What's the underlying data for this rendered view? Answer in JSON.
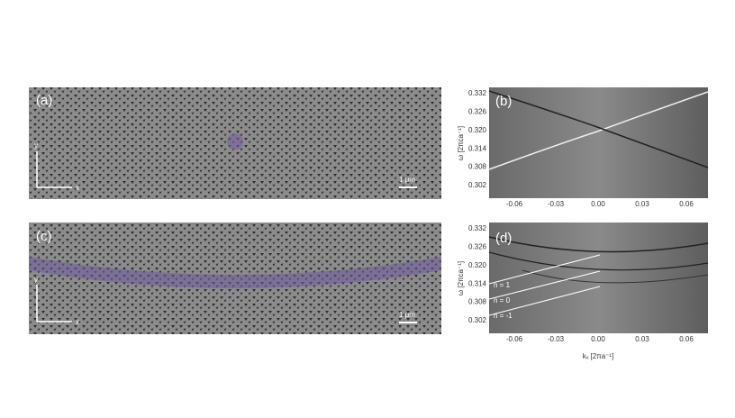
{
  "panels": [
    {
      "label": "(a)",
      "axis_y": "y",
      "axis_x": "x",
      "scale_bar": "1 μm"
    },
    {
      "label": "(b)",
      "y_axis_label": "ω [2πca⁻¹]",
      "yticks": [
        "0.332",
        "0.326",
        "0.320",
        "0.314",
        "0.308",
        "0.302"
      ],
      "xticks": [
        "-0.06",
        "-0.03",
        "0.00",
        "0.03",
        "0.06"
      ]
    },
    {
      "label": "(c)",
      "axis_y": "y",
      "axis_x": "x",
      "scale_bar": "1 μm"
    },
    {
      "label": "(d)",
      "y_axis_label": "ω [2πca⁻¹]",
      "yticks": [
        "0.332",
        "0.326",
        "0.320",
        "0.314",
        "0.308",
        "0.302"
      ],
      "xticks": [
        "-0.06",
        "-0.03",
        "0.00",
        "0.03",
        "0.06"
      ],
      "x_axis_label": "kₓ [2πa⁻¹]",
      "mode_labels": [
        "n = 1",
        "n = 0",
        "n = -1"
      ]
    }
  ]
}
